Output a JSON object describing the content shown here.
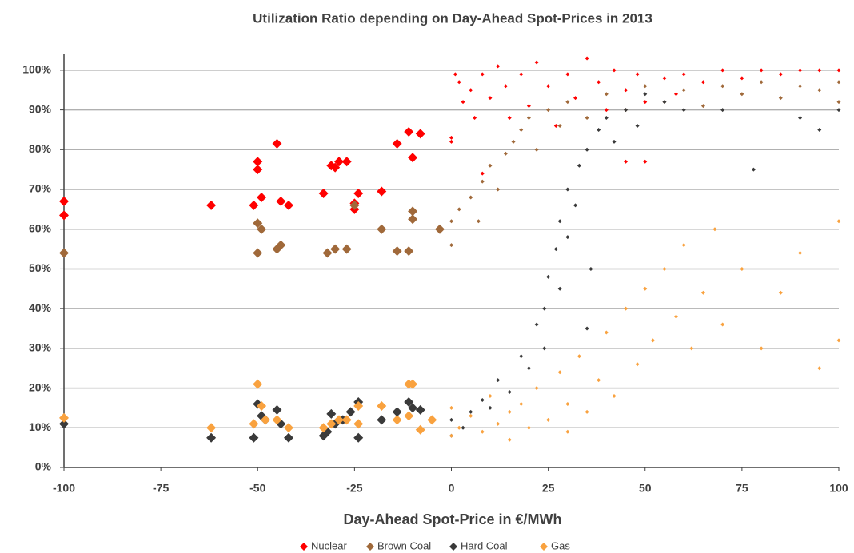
{
  "chart_data": {
    "type": "scatter",
    "title": "Utilization Ratio depending on Day-Ahead Spot-Prices in 2013",
    "x_label": "Day-Ahead Spot-Price in €/MWh",
    "xlim": [
      -100,
      100
    ],
    "xticks": [
      -100,
      -75,
      -50,
      -25,
      0,
      25,
      50,
      75,
      100
    ],
    "ylim": [
      0,
      104
    ],
    "yticks": [
      {
        "value": 0,
        "label": "0%"
      },
      {
        "value": 10,
        "label": "10%"
      },
      {
        "value": 20,
        "label": "20%"
      },
      {
        "value": 30,
        "label": "30%"
      },
      {
        "value": 40,
        "label": "40%"
      },
      {
        "value": 50,
        "label": "50%"
      },
      {
        "value": 60,
        "label": "60%"
      },
      {
        "value": 70,
        "label": "70%"
      },
      {
        "value": 80,
        "label": "80%"
      },
      {
        "value": 90,
        "label": "90%"
      },
      {
        "value": 100,
        "label": "100%"
      }
    ],
    "grid": true,
    "legend": "bottom",
    "series": [
      {
        "name": "Nuclear",
        "color": "#ff0000",
        "x": [
          -100,
          -100,
          -62,
          -51,
          -50,
          -50,
          -49,
          -45,
          -44,
          -42,
          -33,
          -31,
          -30,
          -29,
          -27,
          -25,
          -24,
          -18,
          -14,
          -11,
          -10,
          -8,
          -25,
          0,
          0,
          1,
          2,
          3,
          5,
          6,
          8,
          10,
          12,
          14,
          15,
          18,
          20,
          22,
          25,
          27,
          30,
          32,
          35,
          38,
          40,
          42,
          45,
          48,
          50,
          55,
          58,
          60,
          65,
          70,
          75,
          80,
          85,
          90,
          95,
          100,
          45,
          50,
          8
        ],
        "values": [
          67,
          63.5,
          66,
          66,
          77,
          75,
          68,
          81.5,
          67,
          66,
          69,
          76,
          75.5,
          77,
          77,
          65,
          69,
          69.5,
          81.5,
          84.5,
          78,
          84,
          66.5,
          83,
          82,
          99,
          97,
          92,
          95,
          88,
          99,
          93,
          101,
          96,
          88,
          99,
          91,
          102,
          96,
          86,
          99,
          93,
          103,
          97,
          90,
          100,
          95,
          99,
          92,
          98,
          94,
          99,
          97,
          100,
          98,
          100,
          99,
          100,
          100,
          100,
          77,
          77,
          74
        ]
      },
      {
        "name": "Brown Coal",
        "color": "#a0693a",
        "x": [
          -100,
          -50,
          -49,
          -50,
          -45,
          -44,
          -32,
          -30,
          -27,
          -18,
          -14,
          -11,
          -10,
          -10,
          -25,
          -3,
          0,
          0,
          2,
          5,
          7,
          8,
          10,
          12,
          14,
          16,
          18,
          20,
          22,
          25,
          28,
          30,
          35,
          40,
          45,
          50,
          55,
          60,
          65,
          70,
          75,
          80,
          85,
          90,
          95,
          100,
          100
        ],
        "values": [
          54,
          61.5,
          60,
          54,
          55,
          56,
          54,
          55,
          55,
          60,
          54.5,
          54.5,
          62.5,
          64.5,
          66,
          60,
          56,
          62,
          65,
          68,
          62,
          72,
          76,
          70,
          79,
          82,
          85,
          88,
          80,
          90,
          86,
          92,
          88,
          94,
          90,
          96,
          92,
          95,
          91,
          96,
          94,
          97,
          93,
          96,
          95,
          97,
          92
        ]
      },
      {
        "name": "Hard Coal",
        "color": "#3a3a3a",
        "x": [
          -100,
          -62,
          -51,
          -50,
          -49,
          -48,
          -45,
          -44,
          -42,
          -33,
          -31,
          -30,
          -28,
          -26,
          -24,
          -24,
          -18,
          -14,
          -11,
          -10,
          -8,
          -32,
          0,
          0,
          3,
          5,
          8,
          10,
          12,
          15,
          18,
          20,
          22,
          24,
          25,
          27,
          28,
          30,
          30,
          32,
          33,
          35,
          36,
          38,
          40,
          42,
          45,
          48,
          50,
          55,
          60,
          70,
          78,
          90,
          95,
          100,
          35,
          28,
          24
        ],
        "values": [
          11,
          7.5,
          7.5,
          16,
          13,
          12,
          14.5,
          11,
          7.5,
          8,
          13.5,
          11,
          12,
          14,
          7.5,
          16.5,
          12,
          14,
          16.5,
          15,
          14.5,
          9,
          8,
          12,
          10,
          14,
          17,
          15,
          22,
          19,
          28,
          25,
          36,
          40,
          48,
          55,
          62,
          58,
          70,
          66,
          76,
          80,
          50,
          85,
          88,
          82,
          90,
          86,
          94,
          92,
          90,
          90,
          75,
          88,
          85,
          90,
          35,
          45,
          30
        ]
      },
      {
        "name": "Gas",
        "color": "#f9a23f",
        "x": [
          -100,
          -62,
          -51,
          -50,
          -49,
          -48,
          -45,
          -42,
          -33,
          -31,
          -29,
          -27,
          -24,
          -24,
          -18,
          -14,
          -11,
          -10,
          -11,
          -8,
          -5,
          0,
          0,
          2,
          5,
          8,
          10,
          12,
          15,
          15,
          18,
          20,
          22,
          25,
          28,
          30,
          30,
          33,
          35,
          38,
          40,
          42,
          45,
          48,
          50,
          52,
          55,
          58,
          60,
          62,
          65,
          68,
          70,
          75,
          80,
          85,
          90,
          95,
          100,
          100
        ],
        "values": [
          12.5,
          10,
          11,
          21,
          15.5,
          12,
          12,
          10,
          10,
          11,
          12,
          12,
          11,
          15.5,
          15.5,
          12,
          21,
          21,
          13,
          9.5,
          12,
          8,
          15,
          10,
          13,
          9,
          18,
          11,
          7,
          14,
          16,
          10,
          20,
          12,
          24,
          9,
          16,
          28,
          14,
          22,
          34,
          18,
          40,
          26,
          45,
          32,
          50,
          38,
          56,
          30,
          44,
          60,
          36,
          50,
          30,
          44,
          54,
          25,
          62,
          32
        ]
      }
    ]
  }
}
